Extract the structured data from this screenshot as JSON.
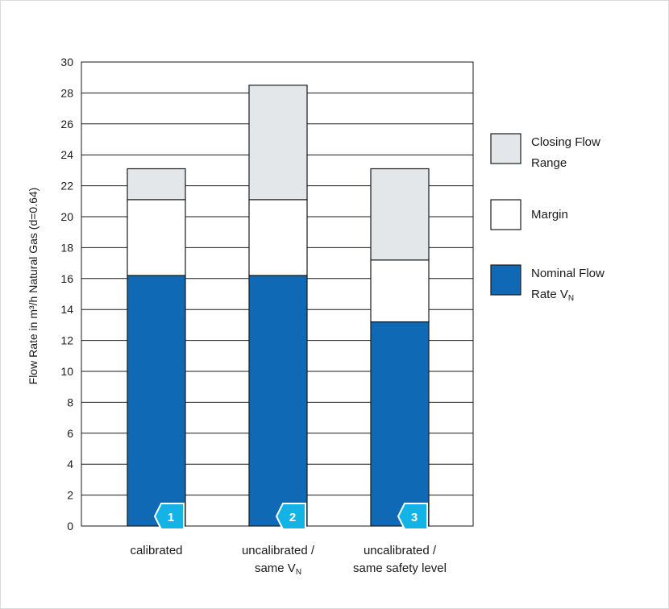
{
  "chart_data": {
    "type": "bar",
    "stacked": true,
    "ylabel": "Flow Rate in m³/h Natural Gas (d=0.64)",
    "ylim": [
      0,
      30
    ],
    "yticks": [
      0,
      2,
      4,
      6,
      8,
      10,
      12,
      14,
      16,
      18,
      20,
      22,
      24,
      26,
      28,
      30
    ],
    "grid": true,
    "legend_position": "right",
    "categories": [
      [
        "calibrated"
      ],
      [
        "uncalibrated /",
        "same VN"
      ],
      [
        "uncalibrated /",
        "same safety level"
      ]
    ],
    "badges": [
      "1",
      "2",
      "3"
    ],
    "series": [
      {
        "name": "Nominal Flow Rate VN",
        "legend_lines": [
          "Nominal Flow",
          "Rate VN"
        ],
        "color": "#0f69b4",
        "values": [
          16.2,
          16.2,
          13.2
        ]
      },
      {
        "name": "Margin",
        "legend_lines": [
          "Margin"
        ],
        "color": "#ffffff",
        "values": [
          4.9,
          4.9,
          4.0
        ]
      },
      {
        "name": "Closing Flow Range",
        "legend_lines": [
          "Closing Flow",
          "Range"
        ],
        "color": "#e4e7ea",
        "values": [
          2.0,
          7.4,
          5.9
        ]
      }
    ],
    "badge_color": "#13b3e6"
  }
}
